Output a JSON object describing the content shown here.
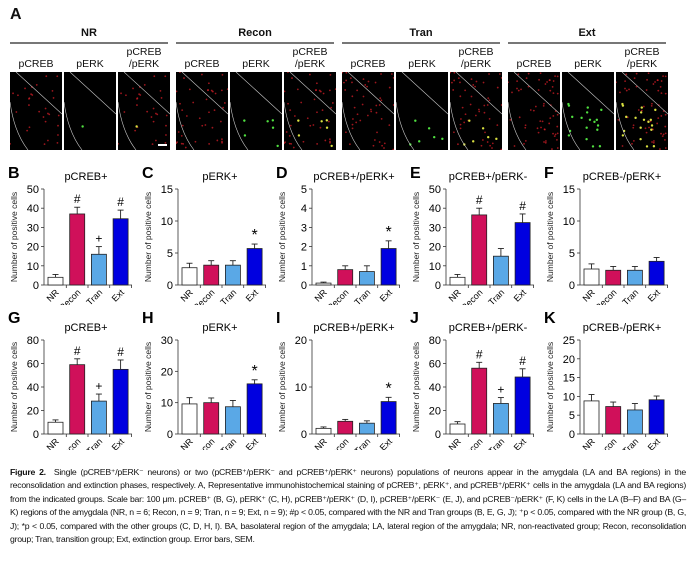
{
  "panel_a": {
    "letter": "A",
    "groups": [
      {
        "name": "NR",
        "red_density": 0.5,
        "green_density": 0.05
      },
      {
        "name": "Recon",
        "red_density": 0.7,
        "green_density": 0.25
      },
      {
        "name": "Tran",
        "red_density": 0.8,
        "green_density": 0.25
      },
      {
        "name": "Ext",
        "red_density": 1.0,
        "green_density": 0.8
      }
    ],
    "sublabels": [
      "pCREB",
      "pERK",
      "pCREB\n/pERK"
    ],
    "channel_colors": {
      "pCREB": "#e0202a",
      "pERK": "#50e040"
    }
  },
  "colors": {
    "NR": "#ffffff",
    "Recon": "#d0105a",
    "Tran": "#5aa8e6",
    "Ext": "#0000e0"
  },
  "chart_data": [
    {
      "letter": "B",
      "type": "bar",
      "title": "pCREB+",
      "ylabel": "Number of positive cells",
      "categories": [
        "NR",
        "Recon",
        "Tran",
        "Ext"
      ],
      "values": [
        4,
        37,
        16,
        34.5
      ],
      "errors": [
        1.5,
        3.5,
        4,
        4.5
      ],
      "markers": [
        "",
        "#",
        "+",
        "#"
      ],
      "ylim": [
        0,
        50
      ],
      "yticks": [
        0,
        10,
        20,
        30,
        40,
        50
      ]
    },
    {
      "letter": "C",
      "type": "bar",
      "title": "pERK+",
      "ylabel": "Number of positive cells",
      "categories": [
        "NR",
        "Recon",
        "Tran",
        "Ext"
      ],
      "values": [
        2.7,
        3.1,
        3.1,
        5.7
      ],
      "errors": [
        0.7,
        0.7,
        0.7,
        0.7
      ],
      "markers": [
        "",
        "",
        "",
        "*"
      ],
      "ylim": [
        0,
        15
      ],
      "yticks": [
        0,
        5,
        10,
        15
      ]
    },
    {
      "letter": "D",
      "type": "bar",
      "title": "pCREB+/pERK+",
      "ylabel": "Number of positive cells",
      "categories": [
        "NR",
        "Recon",
        "Tran",
        "Ext"
      ],
      "values": [
        0.1,
        0.8,
        0.7,
        1.9
      ],
      "errors": [
        0.05,
        0.2,
        0.3,
        0.4
      ],
      "markers": [
        "",
        "",
        "",
        "*"
      ],
      "ylim": [
        0,
        5
      ],
      "yticks": [
        0,
        1,
        2,
        3,
        4,
        5
      ]
    },
    {
      "letter": "E",
      "type": "bar",
      "title": "pCREB+/pERK-",
      "ylabel": "Number of positive cells",
      "categories": [
        "NR",
        "Recon",
        "Tran",
        "Ext"
      ],
      "values": [
        4,
        36.5,
        15,
        32.5
      ],
      "errors": [
        1.5,
        3.5,
        4,
        4.5
      ],
      "markers": [
        "",
        "#",
        "",
        "#"
      ],
      "ylim": [
        0,
        50
      ],
      "yticks": [
        0,
        10,
        20,
        30,
        40,
        50
      ]
    },
    {
      "letter": "F",
      "type": "bar",
      "title": "pCREB-/pERK+",
      "ylabel": "Number of positive cells",
      "categories": [
        "NR",
        "Recon",
        "Tran",
        "Ext"
      ],
      "values": [
        2.5,
        2.3,
        2.3,
        3.7
      ],
      "errors": [
        0.8,
        0.6,
        0.6,
        0.6
      ],
      "markers": [
        "",
        "",
        "",
        ""
      ],
      "ylim": [
        0,
        15
      ],
      "yticks": [
        0,
        5,
        10,
        15
      ]
    },
    {
      "letter": "G",
      "type": "bar",
      "title": "pCREB+",
      "ylabel": "Number of positive cells",
      "categories": [
        "NR",
        "Recon",
        "Tran",
        "Ext"
      ],
      "values": [
        10,
        59,
        28,
        55
      ],
      "errors": [
        2,
        5,
        6,
        8
      ],
      "markers": [
        "",
        "#",
        "+",
        "#"
      ],
      "ylim": [
        0,
        80
      ],
      "yticks": [
        0,
        20,
        40,
        60,
        80
      ]
    },
    {
      "letter": "H",
      "type": "bar",
      "title": "pERK+",
      "ylabel": "Number of positive cells",
      "categories": [
        "NR",
        "Recon",
        "Tran",
        "Ext"
      ],
      "values": [
        9.6,
        10,
        8.7,
        16
      ],
      "errors": [
        2,
        1.5,
        2,
        1.3
      ],
      "markers": [
        "",
        "",
        "",
        "*"
      ],
      "ylim": [
        0,
        30
      ],
      "yticks": [
        0,
        10,
        20,
        30
      ]
    },
    {
      "letter": "I",
      "type": "bar",
      "title": "pCREB+/pERK+",
      "ylabel": "Number of positive cells",
      "categories": [
        "NR",
        "Recon",
        "Tran",
        "Ext"
      ],
      "values": [
        1.2,
        2.7,
        2.3,
        6.9
      ],
      "errors": [
        0.3,
        0.4,
        0.5,
        0.9
      ],
      "markers": [
        "",
        "",
        "",
        "*"
      ],
      "ylim": [
        0,
        20
      ],
      "yticks": [
        0,
        10,
        20
      ]
    },
    {
      "letter": "J",
      "type": "bar",
      "title": "pCREB+/pERK-",
      "ylabel": "Number of positive cells",
      "categories": [
        "NR",
        "Recon",
        "Tran",
        "Ext"
      ],
      "values": [
        8.5,
        56,
        26,
        48.5
      ],
      "errors": [
        2,
        5,
        5,
        7
      ],
      "markers": [
        "",
        "#",
        "+",
        "#"
      ],
      "ylim": [
        0,
        80
      ],
      "yticks": [
        0,
        20,
        40,
        60,
        80
      ]
    },
    {
      "letter": "K",
      "type": "bar",
      "title": "pCREB-/pERK+",
      "ylabel": "Number of positive cells",
      "categories": [
        "NR",
        "Recon",
        "Tran",
        "Ext"
      ],
      "values": [
        8.8,
        7.3,
        6.4,
        9.1
      ],
      "errors": [
        1.7,
        1.2,
        1.7,
        1
      ],
      "markers": [
        "",
        "",
        "",
        ""
      ],
      "ylim": [
        0,
        25
      ],
      "yticks": [
        0,
        5,
        10,
        15,
        20,
        25
      ]
    }
  ],
  "caption": {
    "label": "Figure 2.",
    "text": "Single (pCREB⁺/pERK⁻ neurons) or two (pCREB⁺/pERK⁻ and pCREB⁺/pERK⁺ neurons) populations of neurons appear in the amygdala (LA and BA regions) in the reconsolidation and extinction phases, respectively. A, Representative immunohistochemical staining of pCREB⁺, pERK⁺, and pCREB⁺/pERK⁺ cells in the amygdala (LA and BA regions) from the indicated groups. Scale bar: 100 μm. pCREB⁺ (B, G), pERK⁺ (C, H), pCREB⁺/pERK⁺ (D, I), pCREB⁺/pERK⁻ (E, J), and pCREB⁻/pERK⁺ (F, K) cells in the LA (B–F) and BA (G–K) regions of the amygdala (NR, n = 6; Recon, n = 9; Tran, n = 9; Ext, n = 9); #p < 0.05, compared with the NR and Tran groups (B, E, G, J); ⁺p < 0.05, compared with the NR group (B, G, J); *p < 0.05, compared with the other groups (C, D, H, I). BA, basolateral region of the amygdala; LA, lateral region of the amygdala; NR, non-reactivated group; Recon, reconsolidation group; Tran, transition group; Ext, extinction group. Error bars, SEM."
  }
}
